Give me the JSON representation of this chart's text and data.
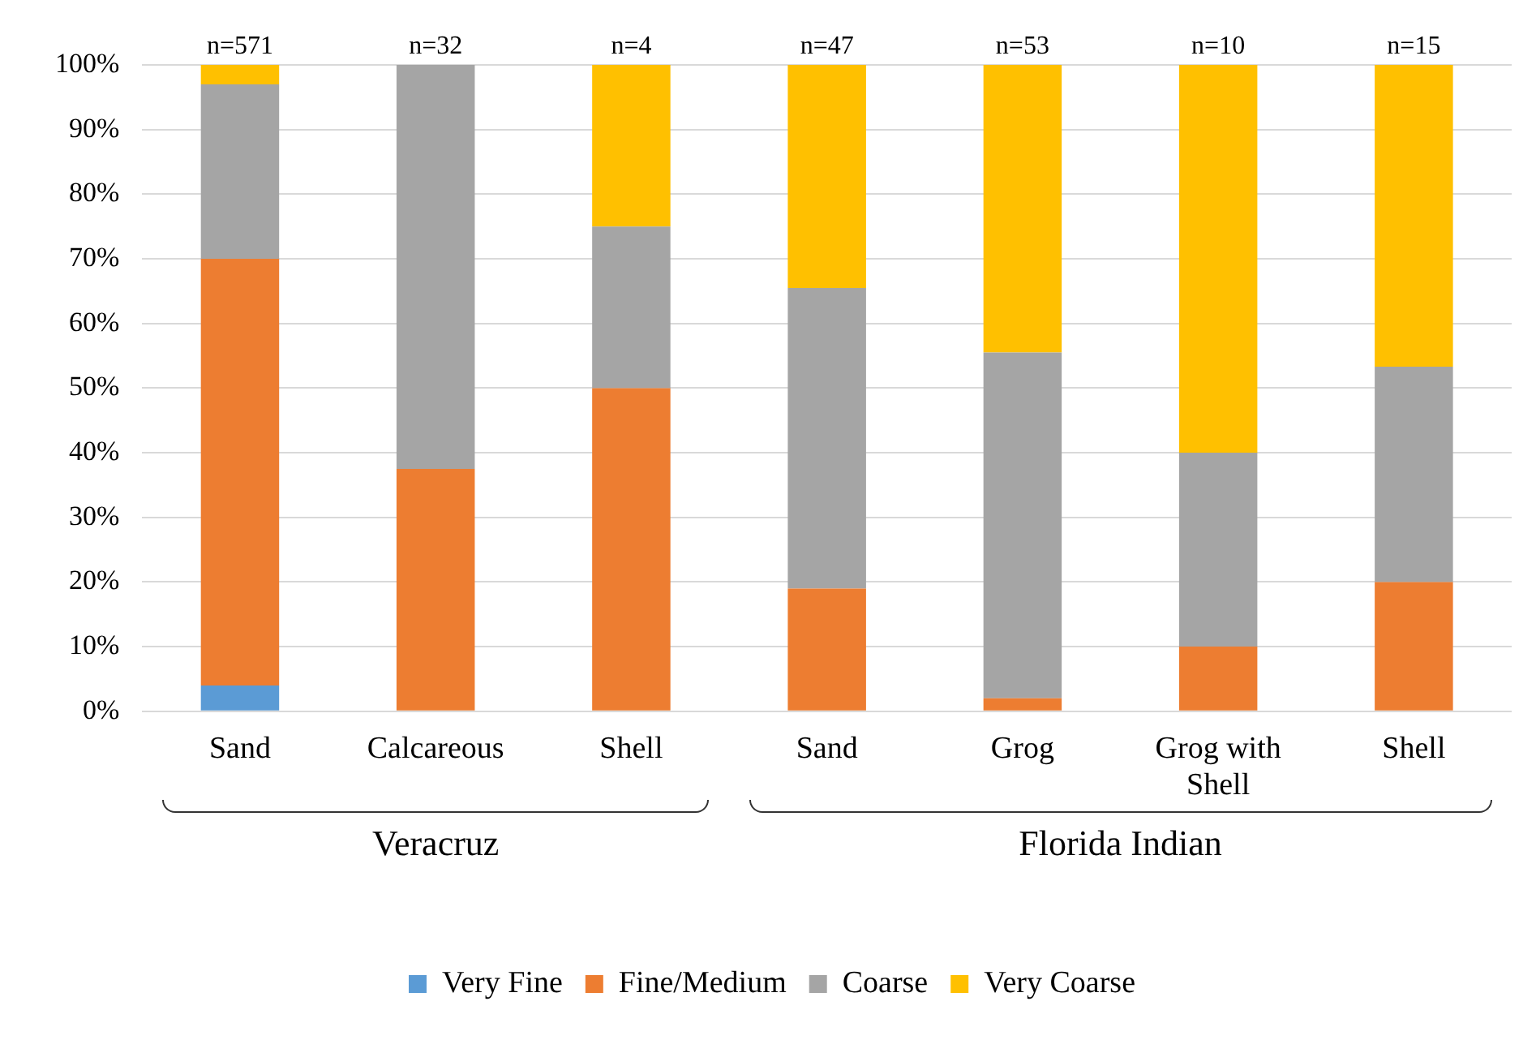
{
  "chart_data": {
    "type": "bar",
    "stacked": true,
    "categories": [
      "Sand",
      "Calcareous",
      "Shell",
      "Sand",
      "Grog",
      "Grog with Shell",
      "Shell"
    ],
    "series": [
      {
        "name": "Very Fine",
        "color": "#5b9bd5",
        "values": [
          4,
          0,
          0,
          0,
          0,
          0,
          0
        ]
      },
      {
        "name": "Fine/Medium",
        "color": "#ed7d31",
        "values": [
          66,
          37.5,
          50,
          19,
          2,
          10,
          20
        ]
      },
      {
        "name": "Coarse",
        "color": "#a5a5a5",
        "values": [
          27,
          62.5,
          25,
          46.5,
          53.5,
          30,
          33.3
        ]
      },
      {
        "name": "Very Coarse",
        "color": "#ffc000",
        "values": [
          3,
          0,
          25,
          34.5,
          44.5,
          60,
          46.7
        ]
      }
    ],
    "annotations": [
      "n=571",
      "n=32",
      "n=4",
      "n=47",
      "n=53",
      "n=10",
      "n=15",
      "Veracruz",
      "Florida Indian"
    ],
    "ylim": [
      0,
      100
    ],
    "yticks": [
      {
        "value": 0,
        "label": "0%"
      },
      {
        "value": 10,
        "label": "10%"
      },
      {
        "value": 20,
        "label": "20%"
      },
      {
        "value": 30,
        "label": "30%"
      },
      {
        "value": 40,
        "label": "40%"
      },
      {
        "value": 50,
        "label": "50%"
      },
      {
        "value": 60,
        "label": "60%"
      },
      {
        "value": 70,
        "label": "70%"
      },
      {
        "value": 80,
        "label": "80%"
      },
      {
        "value": 90,
        "label": "90%"
      },
      {
        "value": 100,
        "label": "100%"
      }
    ],
    "grid": "y",
    "legend": "bottom"
  }
}
